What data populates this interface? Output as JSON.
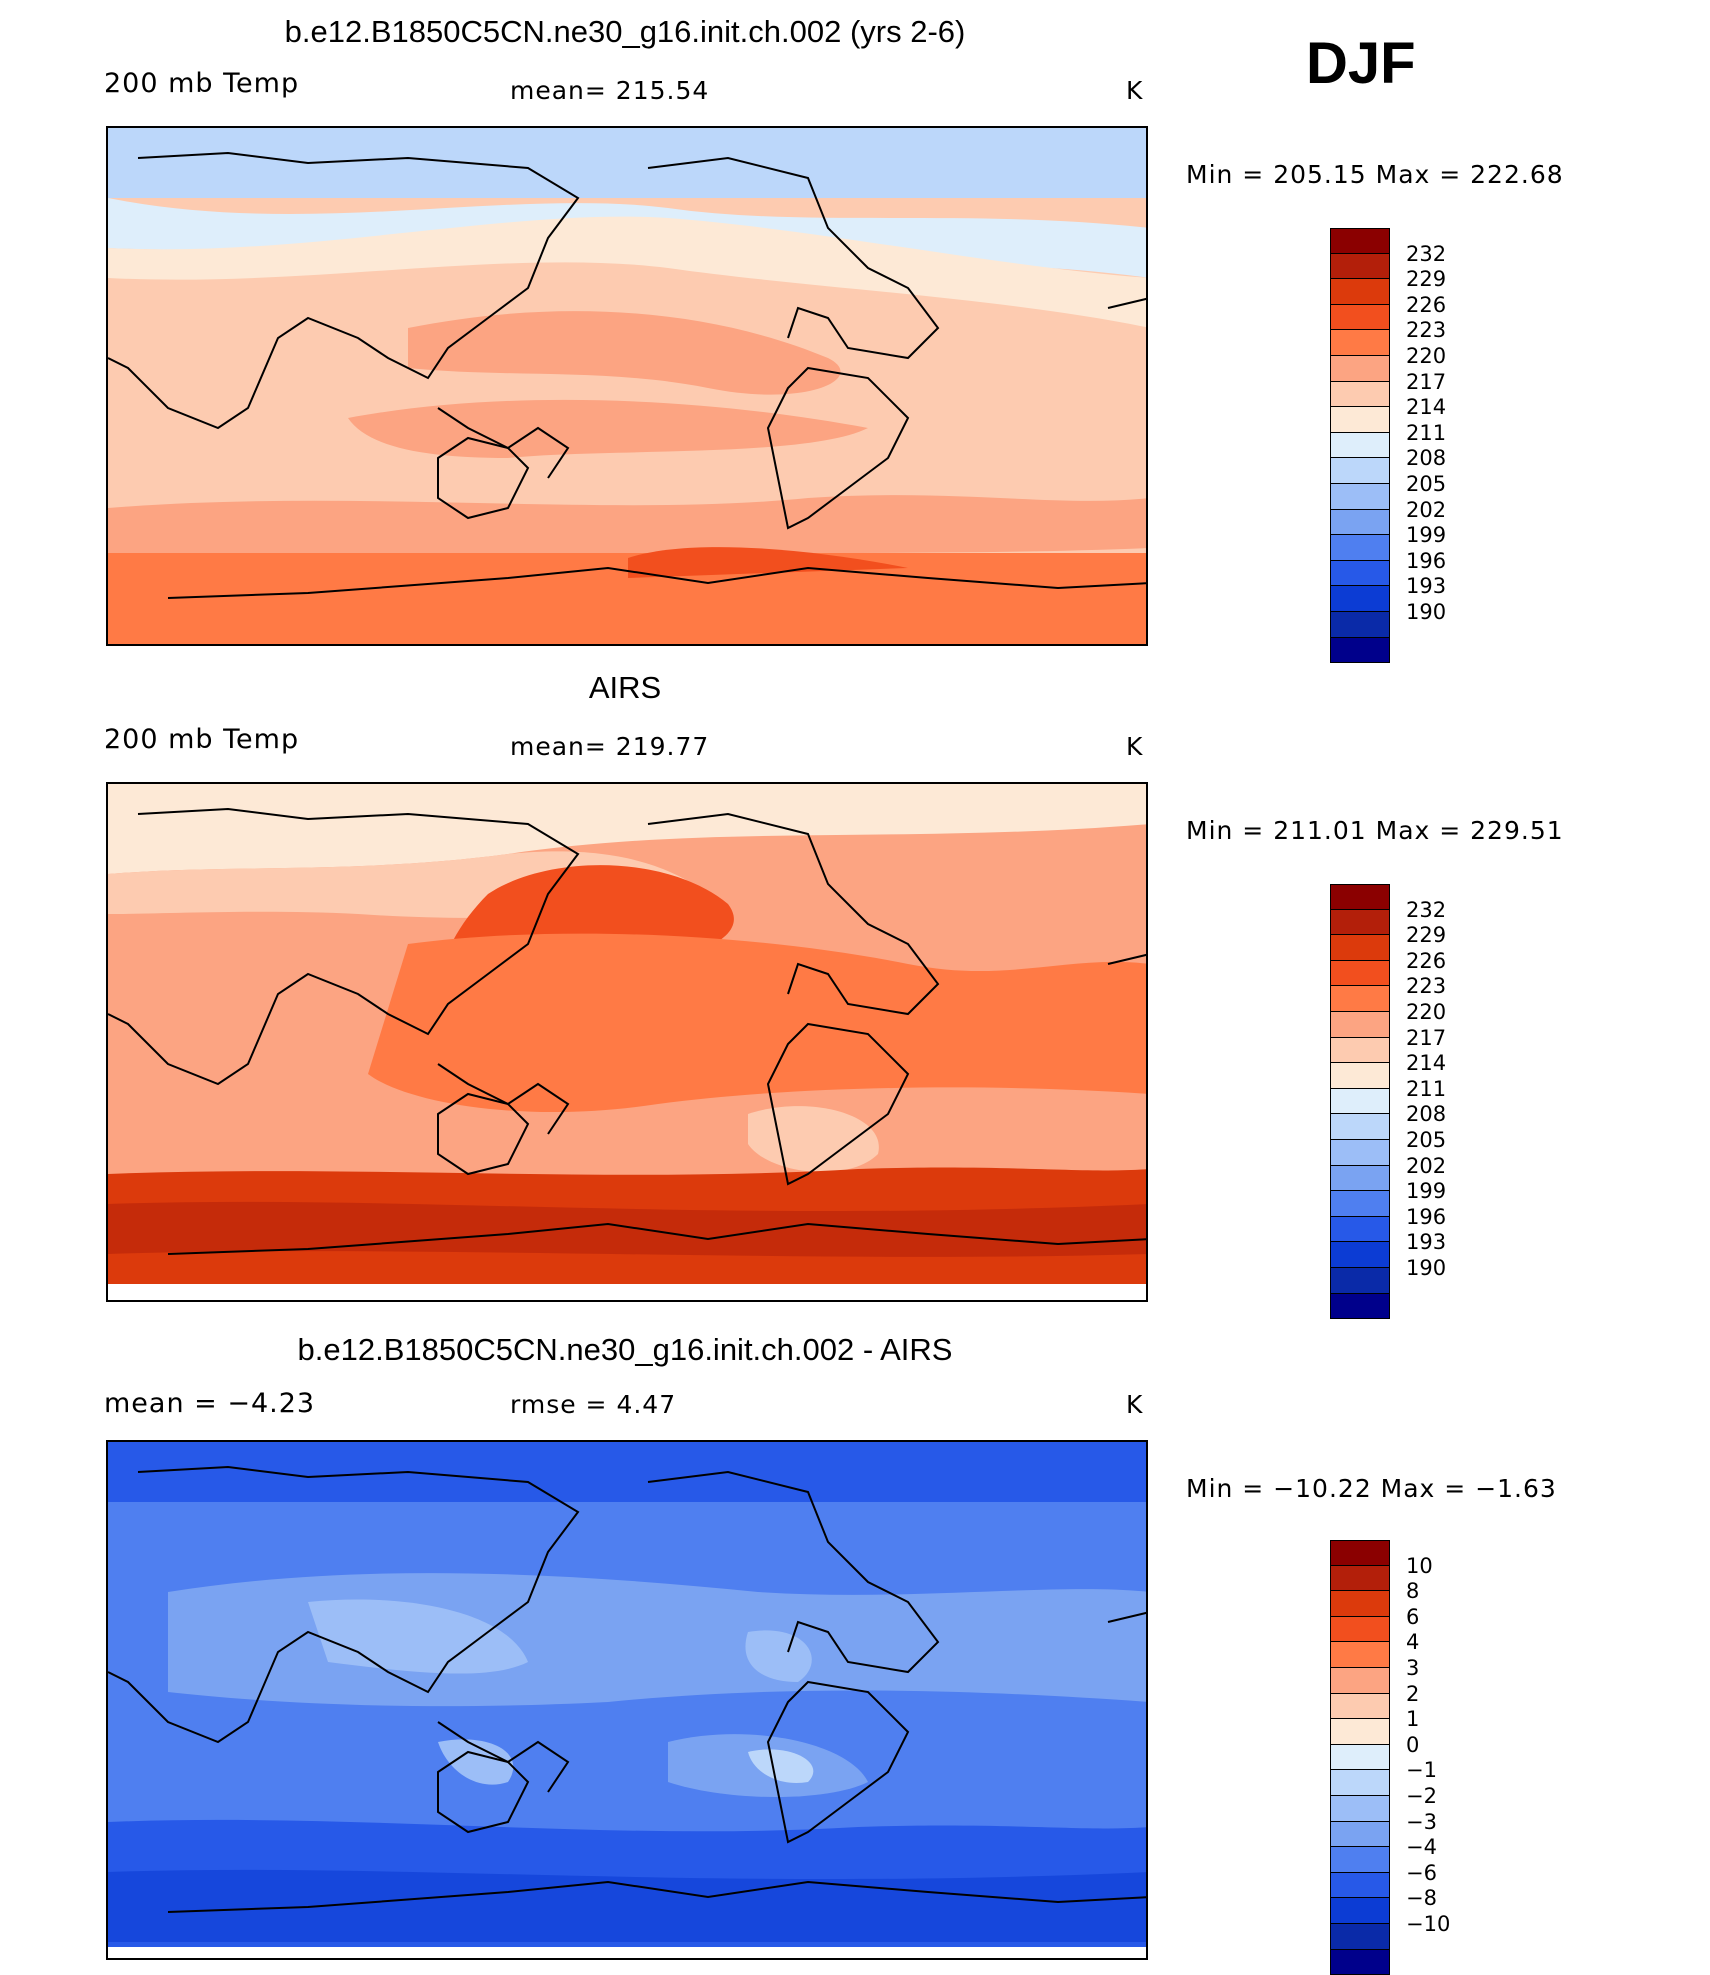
{
  "season": "DJF",
  "panels": [
    {
      "title": "b.e12.B1850C5CN.ne30_g16.init.ch.002 (yrs 2-6)",
      "left_label": "200 mb Temp",
      "center_label": "mean=  215.54",
      "units": "K",
      "minmax": "Min  =  205.15  Max  =  222.68"
    },
    {
      "title": "AIRS",
      "left_label": "200 mb Temp",
      "center_label": "mean=  219.77",
      "units": "K",
      "minmax": "Min  =  211.01  Max  =  229.51"
    },
    {
      "title": "b.e12.B1850C5CN.ne30_g16.init.ch.002 - AIRS",
      "left_label": "mean  =    −4.23",
      "center_label": "rmse  =      4.47",
      "units": "K",
      "minmax": "Min  =  −10.22  Max  =    −1.63"
    }
  ],
  "colorbar_temp": {
    "labels": [
      "232",
      "229",
      "226",
      "223",
      "220",
      "217",
      "214",
      "211",
      "208",
      "205",
      "202",
      "199",
      "196",
      "193",
      "190"
    ],
    "colors": [
      "#8b0000",
      "#b31f0a",
      "#dc3a0c",
      "#f24f1e",
      "#ff7a45",
      "#fca482",
      "#fdcbb0",
      "#fde9d6",
      "#deeefb",
      "#bcd7fa",
      "#9cbef7",
      "#7aa3f2",
      "#4f7ff0",
      "#2759e8",
      "#0c3cd4",
      "#0a2aa8",
      "#00008b"
    ]
  },
  "colorbar_diff": {
    "labels": [
      "10",
      "8",
      "6",
      "4",
      "3",
      "2",
      "1",
      "0",
      "−1",
      "−2",
      "−3",
      "−4",
      "−6",
      "−8",
      "−10"
    ],
    "colors": [
      "#8b0000",
      "#b31f0a",
      "#dc3a0c",
      "#f24f1e",
      "#ff7a45",
      "#fca482",
      "#fdcbb0",
      "#fde9d6",
      "#deeefb",
      "#bcd7fa",
      "#9cbef7",
      "#7aa3f2",
      "#4f7ff0",
      "#2759e8",
      "#0c3cd4",
      "#0a2aa8",
      "#00008b"
    ]
  }
}
